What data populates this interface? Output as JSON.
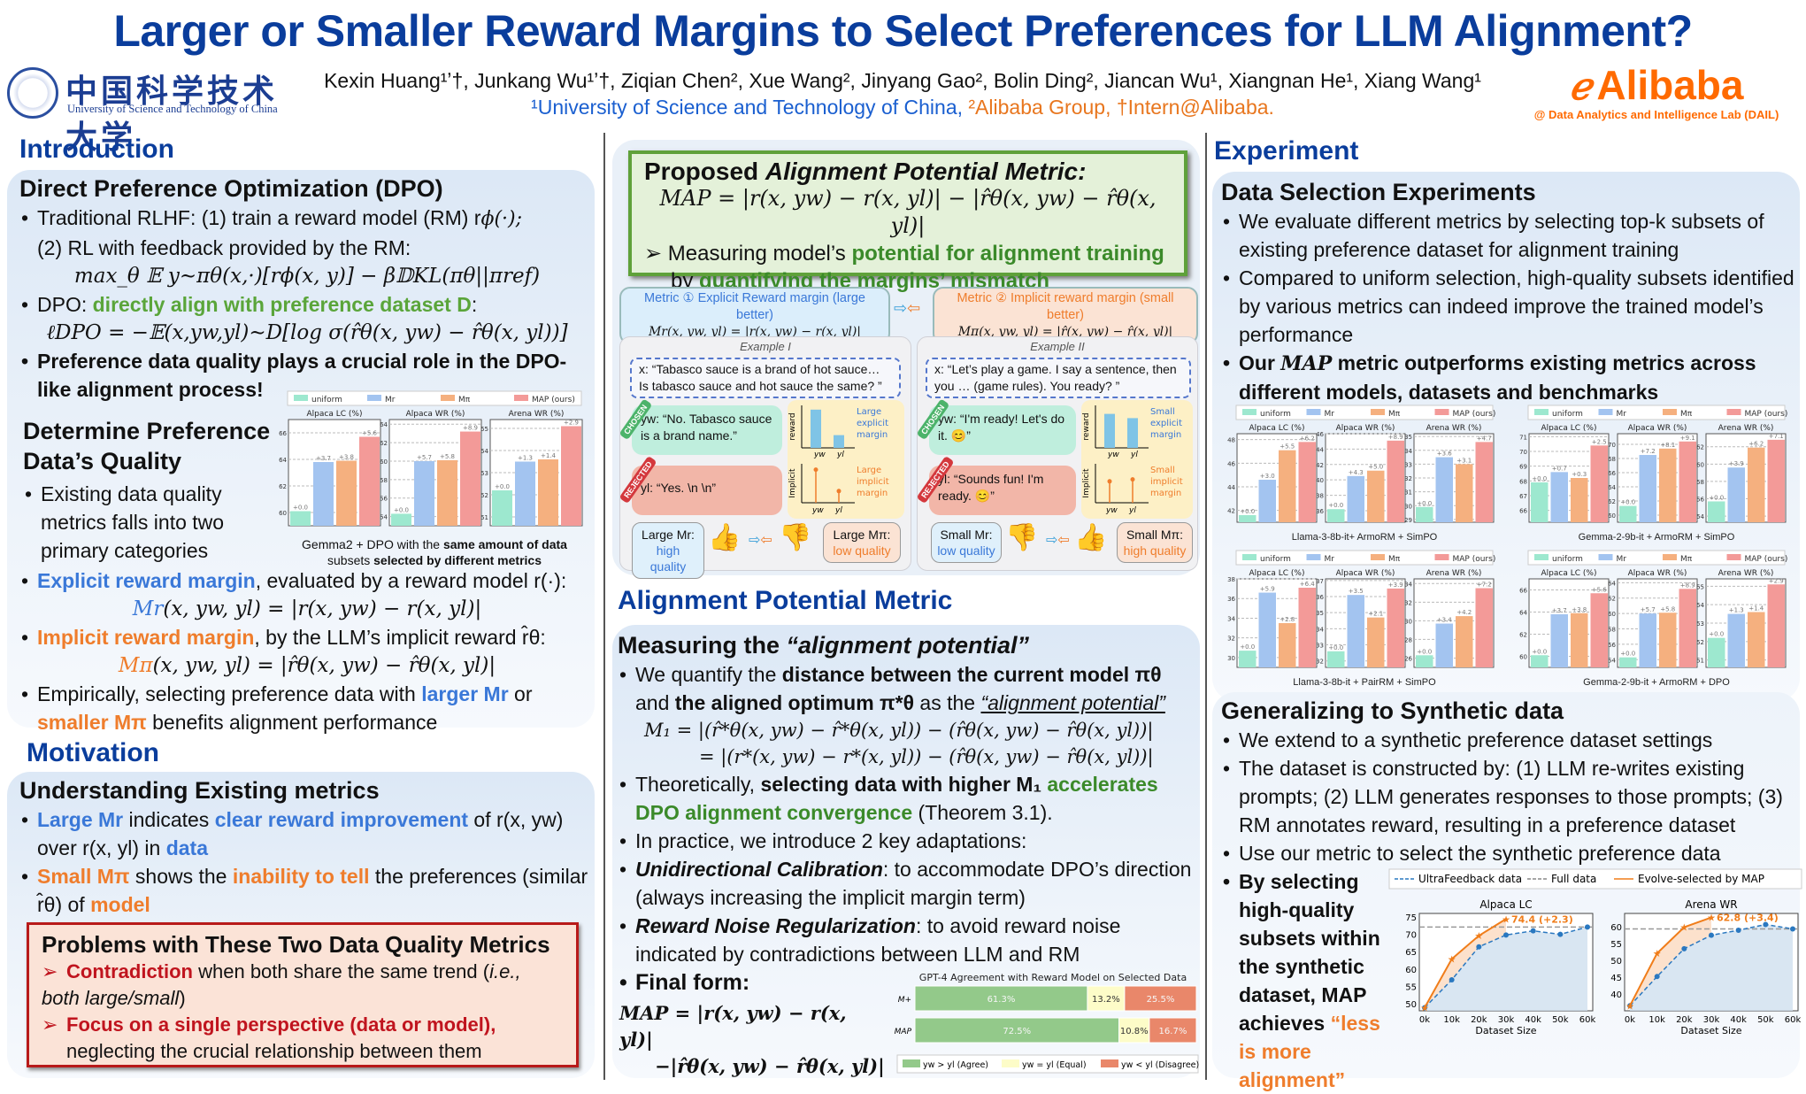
{
  "header": {
    "title": "Larger or Smaller Reward Margins to Select Preferences for LLM Alignment?",
    "authors": "Kexin Huang¹ʼ†, Junkang Wu¹ʼ†, Ziqian Chen², Xue Wang², Jinyang Gao², Bolin Ding², Jiancan Wu¹, Xiangnan He¹, Xiang Wang¹",
    "affiliation_ustc": "¹University of Science and Technology of China,",
    "affiliation_alibaba": "²Alibaba Group, †Intern@Alibaba.",
    "ustc_logo_cn": "中国科学技术大学",
    "ustc_logo_en": "University of Science and Technology of China",
    "alibaba_logo": "Alibaba",
    "alibaba_lab": "@ Data Analytics and Intelligence Lab (DAIL)"
  },
  "colors": {
    "title_blue": "#0a3d9c",
    "green": "#5aa53a",
    "blue": "#3a78d8",
    "orange": "#ef7d2c",
    "red": "#c0141e",
    "uniform": "#9de8cf",
    "Mr": "#a3c4f0",
    "Mpi": "#f5b07f",
    "MAP": "#f39a98"
  },
  "introduction": {
    "heading": "Introduction",
    "dpo_title": "Direct Preference Optimization (DPO)",
    "rlhf_1": "Traditional RLHF: (1) train a reward model (RM) r",
    "rlhf_1_math": "ϕ(·);",
    "rlhf_2": "(2) RL with feedback provided by the  RM:",
    "rlhf_eq": "max_θ 𝔼 y∼πθ(x,·)[rϕ(x, y)] − β𝔻KL(πθ||πref)",
    "dpo_prefix": "DPO: ",
    "dpo_green": "directly align with preference dataset D",
    "dpo_suffix": ":",
    "dpo_eq": "ℓDPO = −𝔼(x,yw,yl)∼D[log σ(r̂θ(x, yw) − r̂θ(x, yl))]",
    "quality_bold": "Preference data quality plays a crucial role in the DPO-like alignment process!",
    "determine_title": "Determine Preference Data’s Quality",
    "determine_bullet": "Existing data quality metrics falls into two primary categories",
    "chart_caption_1": "Gemma2 + DPO with the ",
    "chart_caption_b1": "same amount of data",
    "chart_caption_2": "subsets ",
    "chart_caption_b2": "selected by different metrics",
    "explicit_label": "Explicit reward margin",
    "explicit_rest": ", evaluated by a reward model r(·):",
    "explicit_eq_lhs": "Mr",
    "explicit_eq": "(x, yw, yl) = |r(x, yw) − r(x, yl)|",
    "implicit_label": "Implicit reward margin",
    "implicit_rest": ", by the LLM’s implicit reward r̂θ:",
    "implicit_eq_lhs": "Mπ",
    "implicit_eq": "(x, yw, yl) = |r̂θ(x, yw) − r̂θ(x, yl)|",
    "empirical_1": "Empirically, selecting preference data with ",
    "empirical_blue": "larger Mr",
    "empirical_2": " or ",
    "empirical_orange": "smaller Mπ",
    "empirical_3": " benefits alignment performance"
  },
  "motivation": {
    "heading": "Motivation",
    "title": "Understanding Existing metrics",
    "b1_blue1": "Large Mr",
    "b1_t1": " indicates ",
    "b1_blue2": "clear reward improvement",
    "b1_t2": " of r(x, yw) over r(x, yl) in ",
    "b1_blue3": "data",
    "b2_or1": "Small Mπ",
    "b2_t1": " shows the ",
    "b2_or2": "inability to tell",
    "b2_t2": " the preferences (similar r̂θ) of ",
    "b2_or3": "model",
    "problems_title": "Problems with These Two Data Quality Metrics",
    "p1_red": "Contradiction",
    "p1_rest": " when both share the same trend (",
    "p1_it": "i.e., both large/small",
    "p1_end": ")",
    "p2_red": "Focus on a single perspective (data or model),",
    "p2_rest": "neglecting the crucial relationship between them"
  },
  "proposed": {
    "title_1": "Proposed ",
    "title_it": "Alignment Potential Metric:",
    "eq": "MAP = |r(x, yw) − r(x, yl)| − |r̂θ(x, yw) − r̂θ(x, yl)|",
    "line1_a": "Measuring model’s ",
    "line1_green": "potential for alignment training",
    "line2_a": "by ",
    "line2_green": "quantifying the margins’ mismatch"
  },
  "figure": {
    "metric1_title": "Metric ① Explicit Reward margin (large better)",
    "metric1_eq": "Mr(x, yw, yl) = |r(x, yw) − r(x, yl)|",
    "metric2_title": "Metric ② Implicit reward margin (small better)",
    "metric2_eq": "Mπ(x, yw, yl) = |r̂(x, yw) − r̂(x, yl)|",
    "ex1": {
      "title": "Example I",
      "prompt": "x: “Tabasco sauce is a brand of hot sauce… Is tabasco sauce and hot sauce the same? ”",
      "chosen_tag": "CHOSEN",
      "chosen": "yw: “No. Tabasco sauce is a brand name.”",
      "rejected_tag": "REJECTED",
      "rejected": "yl: “Yes. \\n \\n”",
      "reward_axis": "reward",
      "implicit_axis": "Implicit",
      "reward_note": [
        "Large",
        "explicit",
        "margin"
      ],
      "implicit_note": [
        "Large",
        "implicit",
        "margin"
      ],
      "left_q1": "Large Mr:",
      "left_q2": "high quality",
      "right_q1": "Large Mπ:",
      "right_q2": "low quality",
      "reward_values": {
        "yw": 0.9,
        "yl": 0.3
      },
      "implicit_values": {
        "yw": 0.85,
        "yl": 0.3
      }
    },
    "ex2": {
      "title": "Example II",
      "prompt": "x: “Let’s play a game. I say a sentence, then you … (game rules). You ready? ”",
      "chosen_tag": "CHOSEN",
      "chosen": "yw: “I'm ready! Let's do it. 😊”",
      "rejected_tag": "REJECTED",
      "rejected": "yl: “Sounds fun! I'm ready. 😊”",
      "reward_axis": "reward",
      "implicit_axis": "Implicit",
      "reward_note": [
        "Small",
        "explicit",
        "margin"
      ],
      "implicit_note": [
        "Small",
        "implicit",
        "margin"
      ],
      "left_q1": "Small Mr:",
      "left_q2": "low quality",
      "right_q1": "Small Mπ:",
      "right_q2": "high quality",
      "reward_values": {
        "yw": 0.8,
        "yl": 0.7
      },
      "implicit_values": {
        "yw": 0.55,
        "yl": 0.6
      }
    },
    "x_labels": [
      "yw",
      "yl"
    ]
  },
  "apm": {
    "heading": "Alignment Potential Metric",
    "title_1": "Measuring the ",
    "title_it": "“alignment potential”",
    "b1_a": "We quantify the ",
    "b1_b": "distance between the current model πθ",
    "b1_c": " and ",
    "b1_d": "the aligned optimum π*θ",
    "b1_e": " as the ",
    "b1_u": "“alignment potential”",
    "eq1": "M₁ = |(r̂*θ(x, yw) − r̂*θ(x, yl)) − (r̂θ(x, yw) − r̂θ(x, yl))|",
    "eq2": "= |(r*(x, yw) − r*(x, yl)) − (r̂θ(x, yw) − r̂θ(x, yl))|",
    "b2_a": "Theoretically, ",
    "b2_b": "selecting data with higher M₁",
    "b2_g": " accelerates DPO alignment convergence",
    "b2_c": " (Theorem 3.1).",
    "b3": "In practice, we introduce 2 key adaptations:",
    "b4_bi": "Unidirectional Calibration",
    "b4_rest": ": to accommodate DPO’s direction (always increasing the implicit margin term)",
    "b5_bi": "Reward Noise Regularization",
    "b5_rest": ": to avoid reward noise indicated by contradictions between LLM and RM",
    "final_label": "Final form:",
    "final_eq1": "MAP = |r(x, yw) − r(x, yl)|",
    "final_eq2": "−|r̂θ(x, yw) − r̂θ(x, yl)|"
  },
  "experiment": {
    "heading": "Experiment",
    "title": "Data Selection Experiments",
    "b1": "We evaluate different metrics by selecting top-k subsets of existing preference dataset for alignment training",
    "b2": "Compared to uniform selection, high-quality subsets identified by various metrics can indeed improve the trained model’s performance",
    "b3_a": "Our ",
    "b3_m": "MAP",
    "b3_b": " metric outperforms existing metrics across different models, datasets and benchmarks",
    "synth_title": "Generalizing to Synthetic data",
    "s1": "We extend to a synthetic preference dataset settings",
    "s2": "The dataset is constructed by: (1) LLM re-writes existing prompts; (2) LLM generates responses to those prompts; (3) RM annotates reward, resulting in a preference dataset",
    "s3": "Use our metric to select the synthetic preference data",
    "s4_b": "By selecting high-quality subsets within the synthetic dataset, MAP achieves ",
    "s4_o": "“less is more alignment”"
  },
  "chart_data": [
    {
      "id": "intro-gemma2-dpo",
      "type": "bar",
      "legend": [
        "uniform",
        "Mr",
        "Mπ",
        "MAP (ours)"
      ],
      "caption": "Gemma2 + DPO with the same amount of data subsets selected by different metrics",
      "panels": [
        {
          "title": "Alpaca LC (%)",
          "ylim": [
            59,
            67
          ],
          "ticks": [
            60,
            62,
            64,
            66
          ],
          "values": [
            60.1,
            63.8,
            63.9,
            65.7
          ],
          "labels": [
            "+0.0",
            "+3.7",
            "+3.8",
            "+5.6"
          ]
        },
        {
          "title": "Alpaca WR (%)",
          "ylim": [
            53,
            64.5
          ],
          "ticks": [
            54,
            56,
            58,
            60,
            62,
            64
          ],
          "values": [
            54.3,
            60.0,
            60.1,
            63.2
          ],
          "labels": [
            "+0.0",
            "+5.7",
            "+5.8",
            "+8.9"
          ]
        },
        {
          "title": "Arena WR (%)",
          "ylim": [
            50.6,
            55.4
          ],
          "ticks": [
            51,
            52,
            53,
            54,
            55
          ],
          "values": [
            52.2,
            53.5,
            53.6,
            55.1
          ],
          "labels": [
            "+0.0",
            "+1.3",
            "+1.4",
            "+2.9"
          ]
        }
      ]
    },
    {
      "id": "llama-armorm-simpo",
      "type": "bar",
      "legend": [
        "uniform",
        "Mr",
        "Mπ",
        "MAP (ours)"
      ],
      "caption": "Llama-3-8b-it+ ArmoRM + SimPO",
      "panels": [
        {
          "title": "Alpaca LC (%)",
          "ylim": [
            41,
            48.5
          ],
          "ticks": [
            42,
            44,
            46,
            48
          ],
          "values": [
            41.6,
            44.6,
            47.1,
            47.8
          ],
          "labels": [
            "+0.0",
            "+3.0",
            "+5.5",
            "+6.2"
          ]
        },
        {
          "title": "Alpaca WR (%)",
          "ylim": [
            34.5,
            46
          ],
          "ticks": [
            36,
            38,
            40,
            42,
            44,
            46
          ],
          "values": [
            36.2,
            40.5,
            41.2,
            45.1
          ],
          "labels": [
            "+0.0",
            "+4.3",
            "+5.0",
            "+8.9"
          ]
        },
        {
          "title": "Arena WR (%)",
          "ylim": [
            28.8,
            35.2
          ],
          "ticks": [
            29,
            30,
            31,
            32,
            33,
            34,
            35
          ],
          "values": [
            29.9,
            33.5,
            33.0,
            34.6
          ],
          "labels": [
            "+0.0",
            "+3.6",
            "+3.1",
            "+4.7"
          ]
        }
      ]
    },
    {
      "id": "gemma-armorm-simpo",
      "type": "bar",
      "legend": [
        "uniform",
        "Mr",
        "Mπ",
        "MAP (ours)"
      ],
      "caption": "Gemma-2-9b-it + ArmoRM + SimPO",
      "panels": [
        {
          "title": "Alpaca LC (%)",
          "ylim": [
            65.2,
            71.2
          ],
          "ticks": [
            66,
            67,
            68,
            69,
            70,
            71
          ],
          "values": [
            67.9,
            68.6,
            68.2,
            70.4
          ],
          "labels": [
            "+0.0",
            "+0.7",
            "+0.3",
            "+2.5"
          ]
        },
        {
          "title": "Alpaca WR (%)",
          "ylim": [
            59,
            71.5
          ],
          "ticks": [
            60,
            62,
            64,
            66,
            68,
            70
          ],
          "values": [
            61.3,
            68.5,
            69.4,
            70.4
          ],
          "labels": [
            "+0.0",
            "+7.2",
            "+8.1",
            "+9.1"
          ]
        },
        {
          "title": "Arena WR (%)",
          "ylim": [
            53.3,
            63.5
          ],
          "ticks": [
            54,
            56,
            58,
            60,
            62
          ],
          "values": [
            55.7,
            59.6,
            61.9,
            62.8
          ],
          "labels": [
            "+0.0",
            "+3.9",
            "+6.2",
            "+7.1"
          ]
        }
      ]
    },
    {
      "id": "llama-pairrm-simpo",
      "type": "bar",
      "legend": [
        "uniform",
        "Mr",
        "Mπ",
        "MAP (ours)"
      ],
      "caption": "Llama-3-8b-it + PairRM + SimPO",
      "panels": [
        {
          "title": "Alpaca LC (%)",
          "ylim": [
            29,
            38
          ],
          "ticks": [
            30,
            32,
            34,
            36,
            38
          ],
          "values": [
            30.7,
            36.6,
            33.5,
            37.1
          ],
          "labels": [
            "+0.0",
            "+5.9",
            "+2.8",
            "+6.4"
          ]
        },
        {
          "title": "Alpaca WR (%)",
          "ylim": [
            31.6,
            37.1
          ],
          "ticks": [
            32,
            33,
            34,
            35,
            36,
            37
          ],
          "values": [
            32.6,
            36.1,
            34.7,
            36.5
          ],
          "labels": [
            "+0.0",
            "+3.5",
            "+2.1",
            "+3.9"
          ]
        },
        {
          "title": "Arena WR (%)",
          "ylim": [
            25,
            34.5
          ],
          "ticks": [
            26,
            28,
            30,
            32,
            34
          ],
          "values": [
            26.3,
            29.7,
            30.5,
            33.5
          ],
          "labels": [
            "+0.0",
            "+3.4",
            "+4.2",
            "+7.2"
          ]
        }
      ]
    },
    {
      "id": "gemma-armorm-dpo",
      "type": "bar",
      "legend": [
        "uniform",
        "Mr",
        "Mπ",
        "MAP (ours)"
      ],
      "caption": "Gemma-2-9b-it + ArmoRM + DPO",
      "panels": [
        {
          "title": "Alpaca LC (%)",
          "ylim": [
            59,
            67
          ],
          "ticks": [
            60,
            62,
            64,
            66
          ],
          "values": [
            60.1,
            63.8,
            63.9,
            65.7
          ],
          "labels": [
            "+0.0",
            "+3.7",
            "+3.8",
            "+5.6"
          ]
        },
        {
          "title": "Alpaca WR (%)",
          "ylim": [
            53,
            64.5
          ],
          "ticks": [
            54,
            56,
            58,
            60,
            62,
            64
          ],
          "values": [
            54.3,
            60.0,
            60.1,
            63.2
          ],
          "labels": [
            "+0.0",
            "+5.7",
            "+5.8",
            "+8.9"
          ]
        },
        {
          "title": "Arena WR (%)",
          "ylim": [
            50.6,
            55.4
          ],
          "ticks": [
            51,
            52,
            53,
            54,
            55
          ],
          "values": [
            52.2,
            53.5,
            53.6,
            55.1
          ],
          "labels": [
            "+0.0",
            "+1.3",
            "+1.4",
            "+2.9"
          ]
        }
      ]
    },
    {
      "id": "gpt4-agreement",
      "type": "bar",
      "orientation": "horizontal-stacked",
      "title": "GPT-4 Agreement with Reward Model on Selected Data",
      "categories": [
        "M+",
        "MAP"
      ],
      "series": [
        {
          "name": "yw > yl (Agree)",
          "values": [
            61.3,
            72.5
          ],
          "color": "#93c98a"
        },
        {
          "name": "yw = yl (Equal)",
          "values": [
            13.2,
            10.8
          ],
          "color": "#fdfcc8"
        },
        {
          "name": "yw < yl (Disagree)",
          "values": [
            25.5,
            16.7
          ],
          "color": "#e9876a"
        }
      ],
      "labels": [
        [
          "61.3%",
          "13.2%",
          "25.5%"
        ],
        [
          "72.5%",
          "10.8%",
          "16.7%"
        ]
      ]
    },
    {
      "id": "synthetic-lines",
      "type": "line",
      "legend": [
        "UltraFeedback data",
        "Full data",
        "Evolve-selected by MAP"
      ],
      "xlabel": "Dataset Size",
      "x": [
        "0k",
        "10k",
        "20k",
        "30k",
        "40k",
        "50k",
        "60k"
      ],
      "panels": [
        {
          "title": "Alpaca LC",
          "ylim": [
            48,
            76
          ],
          "ticks": [
            50,
            55,
            60,
            65,
            70,
            75
          ],
          "ultrafeedback": [
            48.9,
            56.9,
            66.4,
            69.8,
            71.0,
            70.0,
            72.1
          ],
          "full_data": 72.1,
          "evolve": [
            48.9,
            62.9,
            69.6,
            74.4
          ],
          "annotation": "74.4 (+2.3)"
        },
        {
          "title": "Arena WR",
          "ylim": [
            35,
            64
          ],
          "ticks": [
            40,
            45,
            50,
            55,
            60
          ],
          "ultrafeedback": [
            36.5,
            45.2,
            53.5,
            57.5,
            59.0,
            60.7,
            59.4
          ],
          "full_data": 59.4,
          "evolve": [
            36.5,
            52.1,
            59.9,
            62.8
          ],
          "annotation": "62.8 (+3.4)"
        }
      ]
    }
  ]
}
